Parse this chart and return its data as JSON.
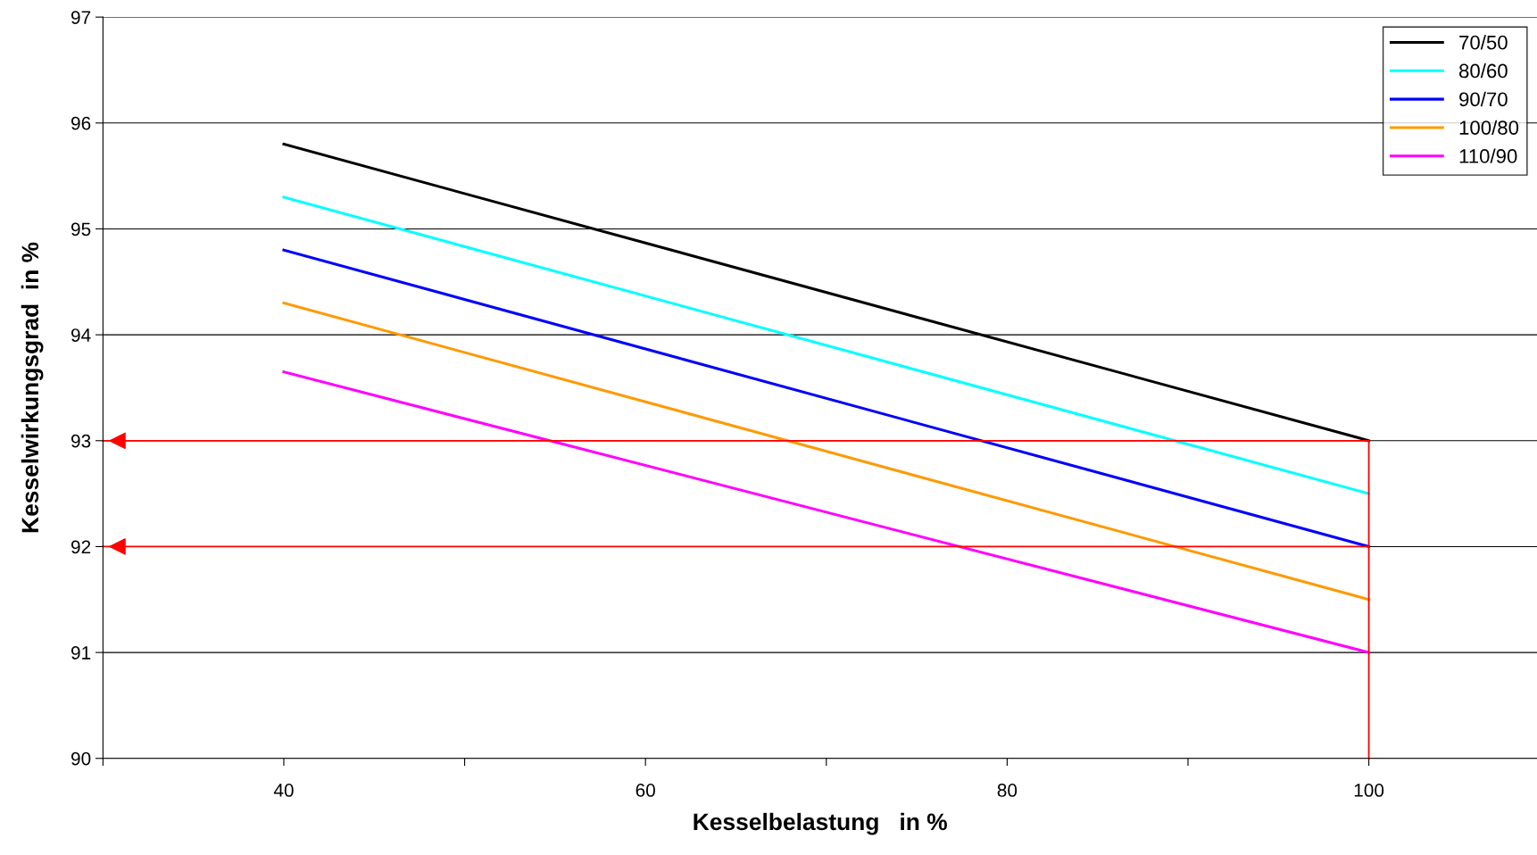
{
  "chart_data": {
    "type": "line",
    "xlabel": "Kesselbelastung   in %",
    "ylabel": "Kesselwirkungsgrad  in %",
    "xlim": [
      30,
      109.3
    ],
    "xticks": [
      {
        "value": 30,
        "label": null
      },
      40,
      {
        "value": 50,
        "label": null
      },
      60,
      {
        "value": 70,
        "label": null
      },
      80,
      {
        "value": 90,
        "label": null
      },
      100
    ],
    "ylim": [
      90,
      97
    ],
    "yticks": [
      90,
      91,
      92,
      93,
      94,
      95,
      96,
      97
    ],
    "grid": "y",
    "legend": "top right",
    "series": [
      {
        "name": "70/50",
        "color": "#000000",
        "x": [
          40,
          100
        ],
        "values": [
          95.8,
          93
        ]
      },
      {
        "name": "80/60",
        "color": "#00ffff",
        "x": [
          40,
          100
        ],
        "values": [
          95.3,
          92.5
        ]
      },
      {
        "name": "90/70",
        "color": "#0000ff",
        "x": [
          40,
          100
        ],
        "values": [
          94.8,
          92
        ]
      },
      {
        "name": "100/80",
        "color": "#ff9900",
        "x": [
          40,
          100
        ],
        "values": [
          94.3,
          91.5
        ]
      },
      {
        "name": "110/90",
        "color": "#ff00ff",
        "x": [
          40,
          100
        ],
        "values": [
          93.65,
          91
        ]
      },
      {
        "color": "#ff0000",
        "x": [
          100,
          30
        ],
        "values": [
          93,
          93
        ]
      },
      {
        "color": "#ff0000",
        "x": [
          100,
          30
        ],
        "values": [
          92,
          92
        ]
      },
      {
        "color": "#ff0000",
        "x": [
          100,
          100
        ],
        "values": [
          90,
          93
        ]
      },
      {
        "type": "scatter",
        "marker": "triangle",
        "color": "#ff0000",
        "x": [
          30.8,
          30.8
        ],
        "values": [
          93,
          92
        ]
      }
    ]
  }
}
